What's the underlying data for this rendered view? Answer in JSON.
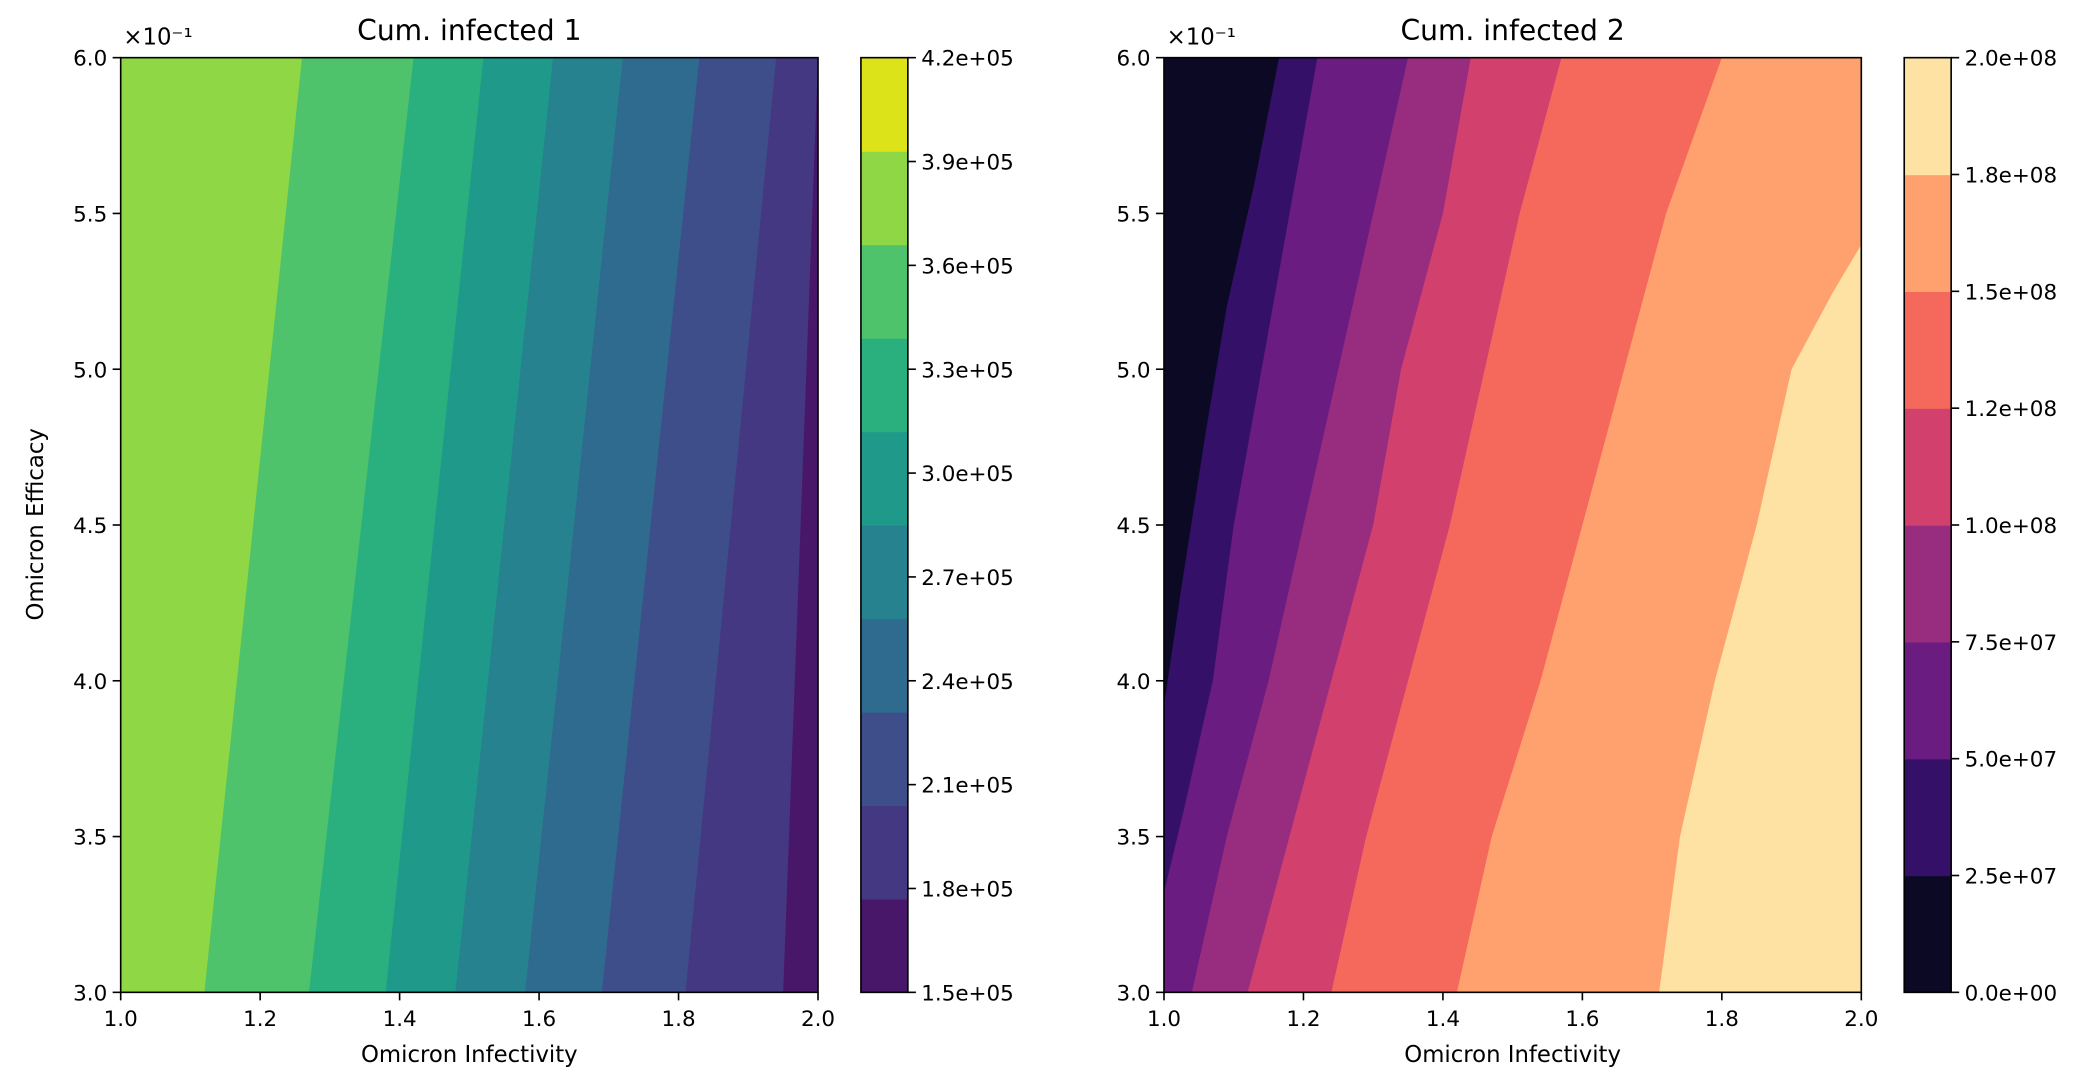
{
  "chart_data": [
    {
      "type": "heatmap",
      "subtype": "filled-contour",
      "title": "Cum. infected 1",
      "xlabel": "Omicron Infectivity",
      "ylabel": "Omicron Efficacy",
      "xlim": [
        1.0,
        2.0
      ],
      "ylim": [
        3.0,
        6.0
      ],
      "y_multiplier": "×10⁻¹",
      "xticks": [
        "1.0",
        "1.2",
        "1.4",
        "1.6",
        "1.8",
        "2.0"
      ],
      "yticks": [
        "3.0",
        "3.5",
        "4.0",
        "4.5",
        "5.0",
        "5.5",
        "6.0"
      ],
      "colormap": "viridis",
      "levels": [
        150000,
        180000,
        210000,
        240000,
        270000,
        300000,
        330000,
        360000,
        390000,
        420000
      ],
      "colorbar_ticks": [
        "1.5e+05",
        "1.8e+05",
        "2.1e+05",
        "2.4e+05",
        "2.7e+05",
        "3.0e+05",
        "3.3e+05",
        "3.6e+05",
        "3.9e+05",
        "4.2e+05"
      ],
      "level_colors": [
        "#481769",
        "#453882",
        "#3d4e8a",
        "#2f6b8e",
        "#26828e",
        "#1f9a8a",
        "#2ab07f",
        "#4ec36b",
        "#8fd744",
        "#dce319"
      ],
      "contour_boundaries": [
        {
          "level": 180000,
          "x_at_y_min": 1.95,
          "x_at_y_max": 2.0
        },
        {
          "level": 210000,
          "x_at_y_min": 1.81,
          "x_at_y_max": 1.94
        },
        {
          "level": 240000,
          "x_at_y_min": 1.69,
          "x_at_y_max": 1.83
        },
        {
          "level": 270000,
          "x_at_y_min": 1.58,
          "x_at_y_max": 1.72
        },
        {
          "level": 300000,
          "x_at_y_min": 1.48,
          "x_at_y_max": 1.62
        },
        {
          "level": 330000,
          "x_at_y_min": 1.38,
          "x_at_y_max": 1.52
        },
        {
          "level": 360000,
          "x_at_y_min": 1.27,
          "x_at_y_max": 1.42
        },
        {
          "level": 390000,
          "x_at_y_min": 1.12,
          "x_at_y_max": 1.26
        }
      ]
    },
    {
      "type": "heatmap",
      "subtype": "filled-contour",
      "title": "Cum. infected 2",
      "xlabel": "Omicron Infectivity",
      "ylabel": "",
      "xlim": [
        1.0,
        2.0
      ],
      "ylim": [
        3.0,
        6.0
      ],
      "y_multiplier": "×10⁻¹",
      "xticks": [
        "1.0",
        "1.2",
        "1.4",
        "1.6",
        "1.8",
        "2.0"
      ],
      "yticks": [
        "3.0",
        "3.5",
        "4.0",
        "4.5",
        "5.0",
        "5.5",
        "6.0"
      ],
      "colormap": "magma",
      "levels": [
        0,
        25000000,
        50000000,
        75000000,
        100000000,
        125000000,
        150000000,
        175000000,
        200000000
      ],
      "colorbar_ticks": [
        "0.0e+00",
        "2.5e+07",
        "5.0e+07",
        "7.5e+07",
        "1.0e+08",
        "1.2e+08",
        "1.5e+08",
        "1.8e+08",
        "2.0e+08"
      ],
      "level_colors": [
        "#0b0924",
        "#341069",
        "#6a1c81",
        "#982d80",
        "#d2416e",
        "#f4695c",
        "#fea16e",
        "#fde2a3"
      ],
      "contour_boundaries": [
        {
          "level": 25000000,
          "points": [
            [
              1.0,
              3.92
            ],
            [
              1.025,
              4.3
            ],
            [
              1.06,
              4.8
            ],
            [
              1.09,
              5.2
            ],
            [
              1.13,
              5.6
            ],
            [
              1.165,
              6.0
            ]
          ]
        },
        {
          "level": 50000000,
          "points": [
            [
              1.0,
              3.32
            ],
            [
              1.03,
              3.6
            ],
            [
              1.07,
              4.0
            ],
            [
              1.1,
              4.5
            ],
            [
              1.14,
              5.0
            ],
            [
              1.18,
              5.5
            ],
            [
              1.22,
              6.0
            ]
          ]
        },
        {
          "level": 75000000,
          "points": [
            [
              1.04,
              3.0
            ],
            [
              1.09,
              3.5
            ],
            [
              1.15,
              4.0
            ],
            [
              1.2,
              4.5
            ],
            [
              1.25,
              5.0
            ],
            [
              1.3,
              5.5
            ],
            [
              1.35,
              6.0
            ]
          ]
        },
        {
          "level": 100000000,
          "points": [
            [
              1.12,
              3.0
            ],
            [
              1.18,
              3.5
            ],
            [
              1.24,
              4.0
            ],
            [
              1.3,
              4.5
            ],
            [
              1.34,
              5.0
            ],
            [
              1.4,
              5.5
            ],
            [
              1.44,
              6.0
            ]
          ]
        },
        {
          "level": 125000000,
          "points": [
            [
              1.24,
              3.0
            ],
            [
              1.29,
              3.5
            ],
            [
              1.35,
              4.0
            ],
            [
              1.41,
              4.5
            ],
            [
              1.46,
              5.0
            ],
            [
              1.51,
              5.5
            ],
            [
              1.57,
              6.0
            ]
          ]
        },
        {
          "level": 150000000,
          "points": [
            [
              1.42,
              3.0
            ],
            [
              1.47,
              3.5
            ],
            [
              1.54,
              4.0
            ],
            [
              1.6,
              4.5
            ],
            [
              1.66,
              5.0
            ],
            [
              1.72,
              5.5
            ],
            [
              1.8,
              6.0
            ]
          ]
        },
        {
          "level": 175000000,
          "points": [
            [
              1.71,
              3.0
            ],
            [
              1.74,
              3.5
            ],
            [
              1.79,
              4.0
            ],
            [
              1.85,
              4.5
            ],
            [
              1.9,
              5.0
            ],
            [
              1.96,
              5.25
            ],
            [
              2.0,
              5.4
            ]
          ]
        }
      ]
    }
  ]
}
